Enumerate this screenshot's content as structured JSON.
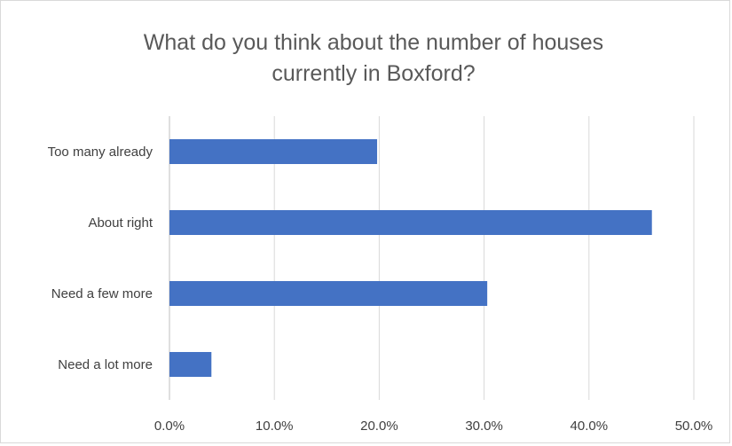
{
  "chart_data": {
    "type": "bar",
    "orientation": "horizontal",
    "title_lines": [
      "What do you think about the number of houses",
      "currently in Boxford?"
    ],
    "categories": [
      "Too many already",
      "About right",
      "Need a few more",
      "Need a lot more"
    ],
    "values": [
      19.8,
      46.0,
      30.3,
      4.0
    ],
    "unit": "%",
    "xlim": [
      0,
      50
    ],
    "xticks": [
      "0.0%",
      "10.0%",
      "20.0%",
      "30.0%",
      "40.0%",
      "50.0%"
    ],
    "xlabel": "",
    "ylabel": "",
    "grid": true,
    "bar_color": "#4472c4"
  }
}
